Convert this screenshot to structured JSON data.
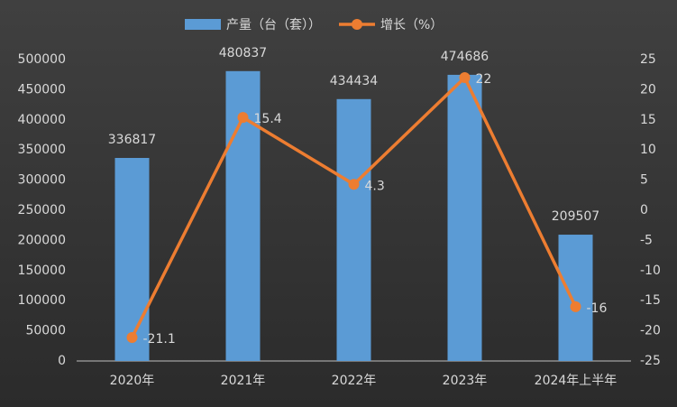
{
  "chart_data": {
    "type": "bar",
    "categories": [
      "2020年",
      "2021年",
      "2022年",
      "2023年",
      "2024年上半年"
    ],
    "series": [
      {
        "name": "产量（台（套））",
        "type": "bar",
        "color": "#5b9bd5",
        "values": [
          336817,
          480837,
          434434,
          474686,
          209507
        ]
      },
      {
        "name": "增长（%）",
        "type": "line",
        "axis": "y2",
        "color": "#ed7d31",
        "values": [
          -21.1,
          15.4,
          4.3,
          22,
          -16
        ]
      }
    ],
    "ylim": [
      0,
      500000
    ],
    "yticks": [
      0,
      50000,
      100000,
      150000,
      200000,
      250000,
      300000,
      350000,
      400000,
      450000,
      500000
    ],
    "y2lim": [
      -25,
      25
    ],
    "y2ticks": [
      -25,
      -20,
      -15,
      -10,
      -5,
      0,
      5,
      10,
      15,
      20,
      25
    ],
    "grid": false,
    "legend": "top"
  }
}
